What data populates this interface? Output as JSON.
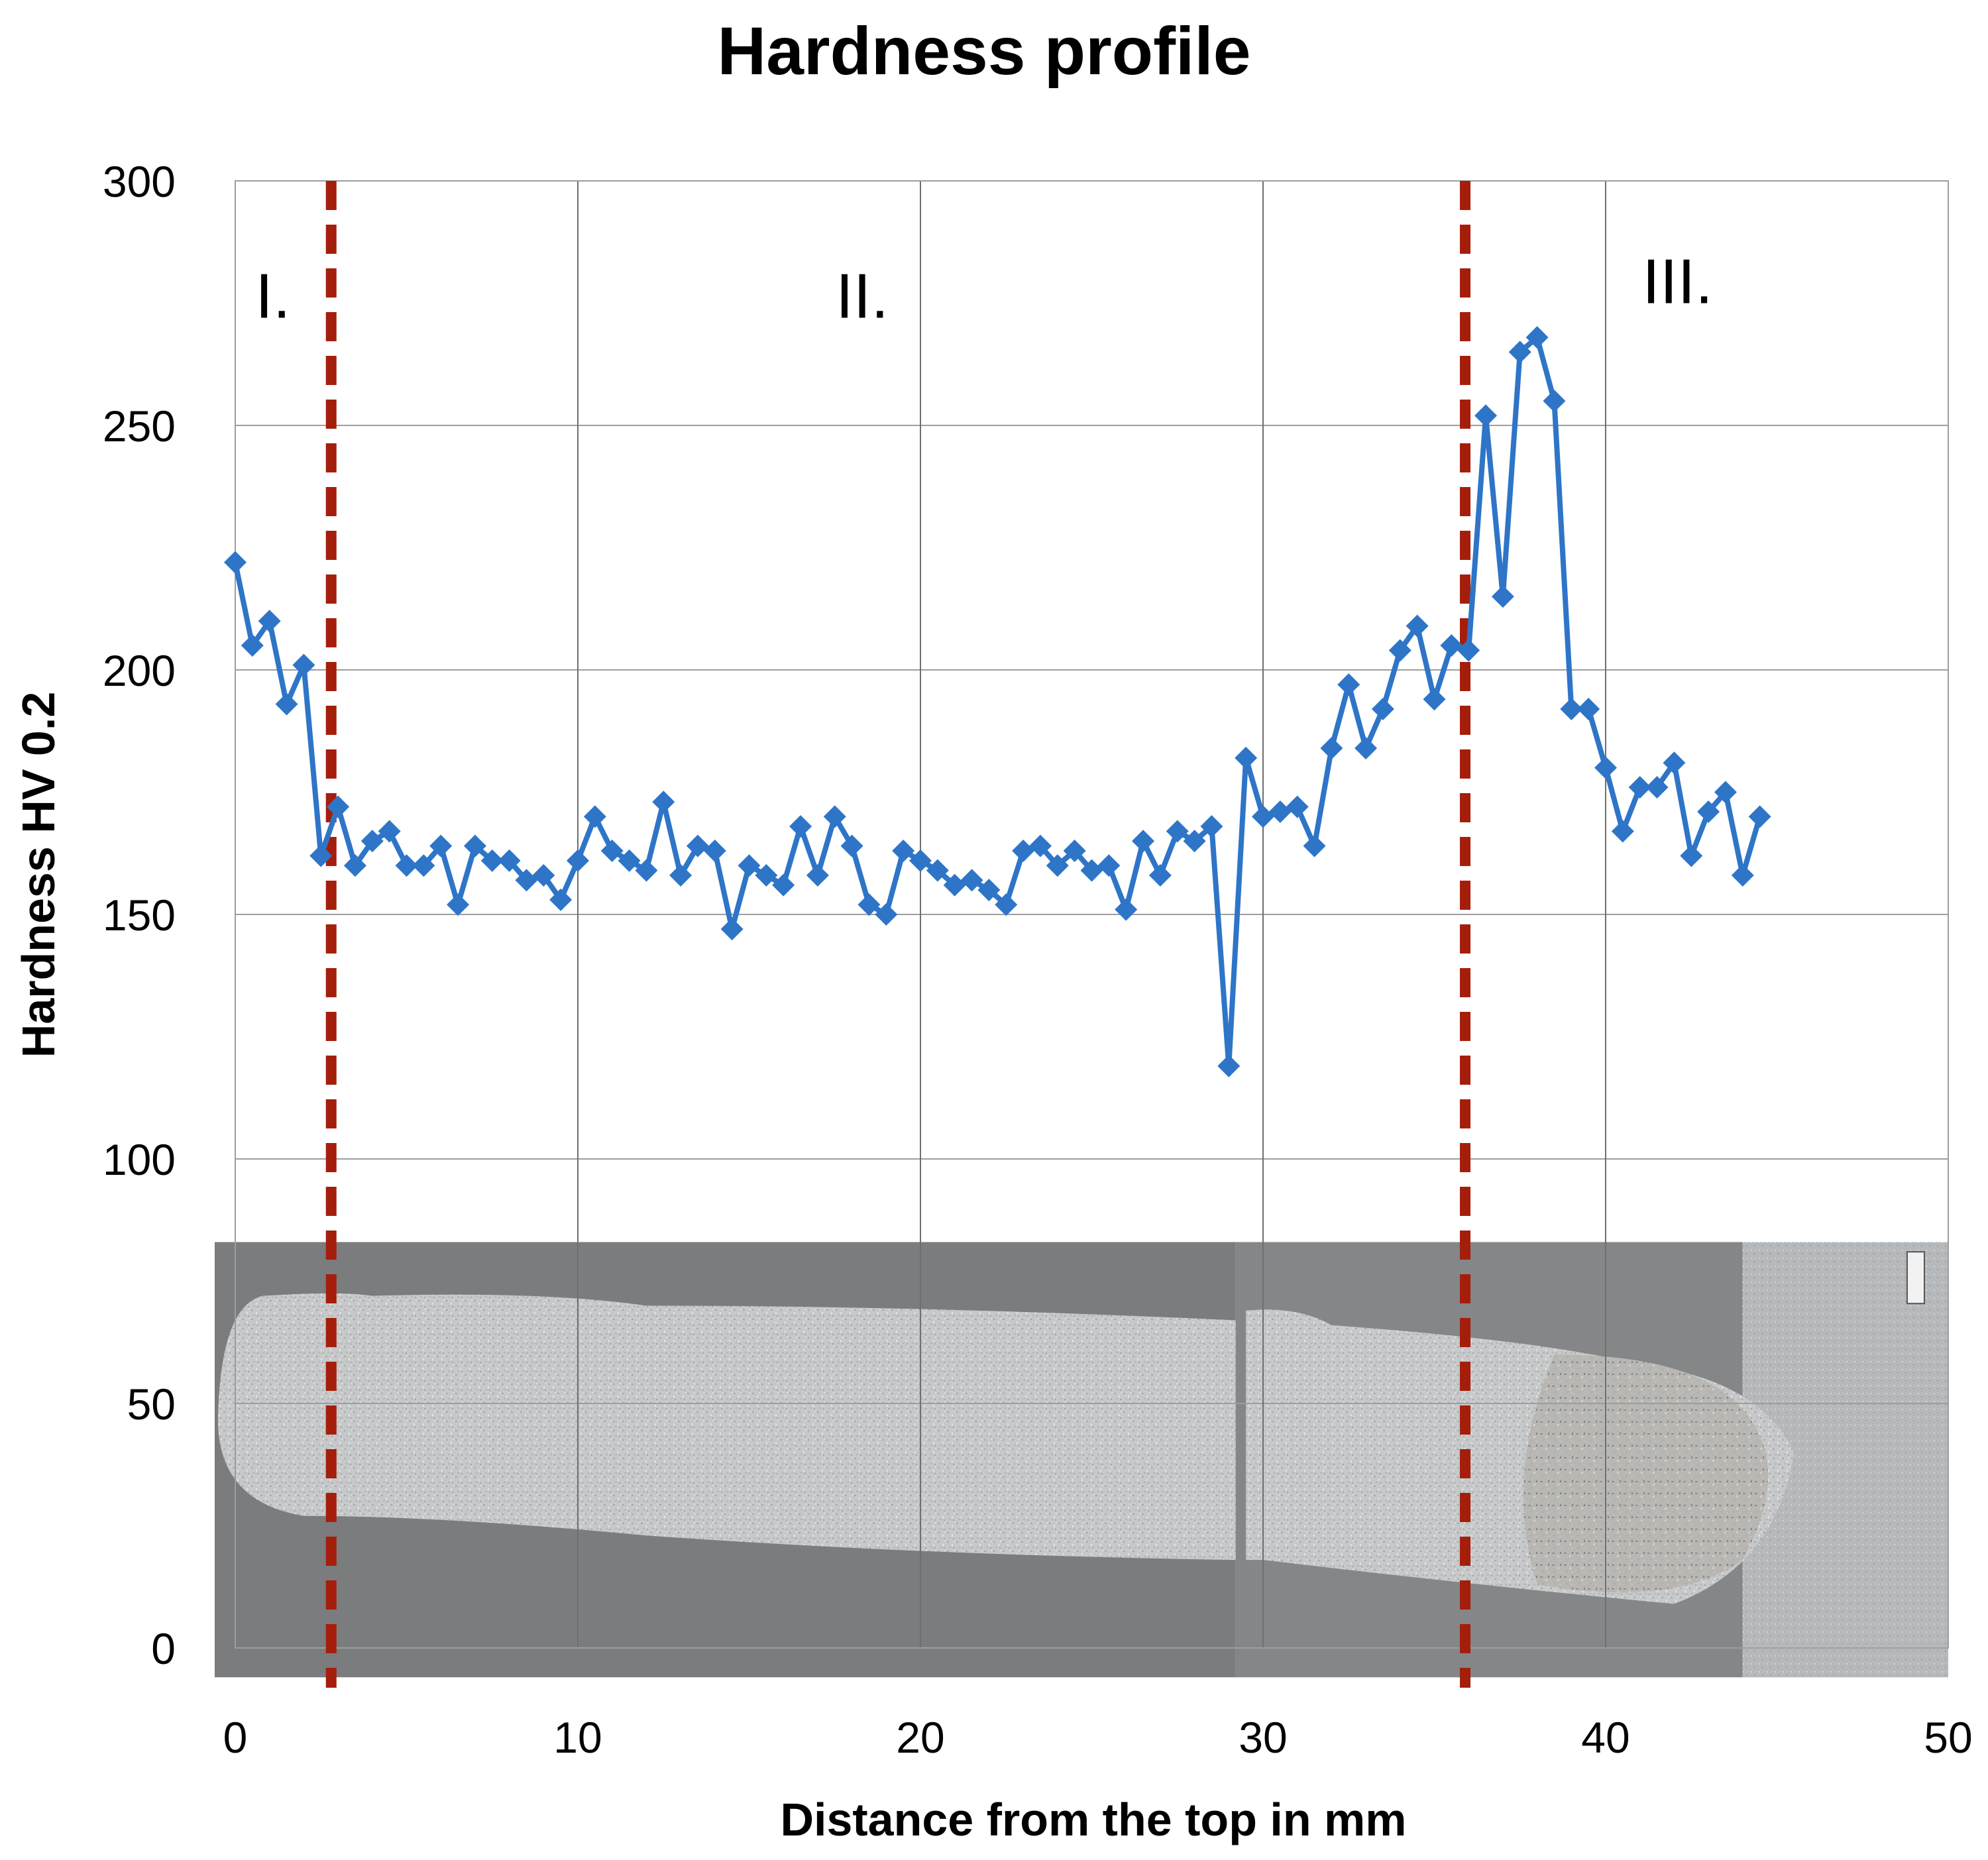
{
  "chart_data": {
    "type": "line",
    "title": "Hardness profile",
    "xlabel": "Distance from the top in mm",
    "ylabel": "Hardness HV 0.2",
    "xlim": [
      0,
      50
    ],
    "ylim": [
      0,
      300
    ],
    "xticks": [
      0,
      10,
      20,
      30,
      40,
      50
    ],
    "yticks": [
      0,
      50,
      100,
      150,
      200,
      250,
      300
    ],
    "grid": true,
    "series": [
      {
        "color": "#2e75c8",
        "marker": "diamond",
        "x": [
          0,
          0.5,
          1,
          1.5,
          2,
          2.5,
          3,
          3.5,
          4,
          4.5,
          5,
          5.5,
          6,
          6.5,
          7,
          7.5,
          8,
          8.5,
          9,
          9.5,
          10,
          10.5,
          11,
          11.5,
          12,
          12.5,
          13,
          13.5,
          14,
          14.5,
          15,
          15.5,
          16,
          16.5,
          17,
          17.5,
          18,
          18.5,
          19,
          19.5,
          20,
          20.5,
          21,
          21.5,
          22,
          22.5,
          23,
          23.5,
          24,
          24.5,
          25,
          25.5,
          26,
          26.5,
          27,
          27.5,
          28,
          28.5,
          29,
          29.5,
          30,
          30.5,
          31,
          31.5,
          32,
          32.5,
          33,
          33.5,
          34,
          34.5,
          35,
          35.5,
          36,
          36.5,
          37,
          37.5,
          38,
          38.5,
          39,
          39.5,
          40,
          40.5,
          41,
          41.5,
          42,
          42.5,
          43,
          43.5,
          44,
          44.5
        ],
        "y": [
          222,
          205,
          210,
          193,
          201,
          162,
          172,
          160,
          165,
          167,
          160,
          160,
          164,
          152,
          164,
          161,
          161,
          157,
          158,
          153,
          161,
          170,
          163,
          161,
          159,
          173,
          158,
          164,
          163,
          147,
          160,
          158,
          156,
          168,
          158,
          170,
          164,
          152,
          150,
          163,
          161,
          159,
          156,
          157,
          155,
          152,
          163,
          164,
          160,
          163,
          159,
          160,
          151,
          165,
          158,
          167,
          165,
          168,
          119,
          182,
          170,
          171,
          172,
          164,
          184,
          197,
          184,
          192,
          204,
          209,
          194,
          205,
          204,
          252,
          215,
          265,
          268,
          255,
          192,
          192,
          180,
          167,
          176,
          176,
          181,
          162,
          171,
          175,
          158,
          170
        ]
      }
    ],
    "boundaries": [
      {
        "x": 2.8,
        "color": "#a51e0c"
      },
      {
        "x": 35.9,
        "color": "#a51e0c"
      }
    ],
    "annotations": [
      {
        "text": "I.",
        "x": 1.1,
        "y": 272
      },
      {
        "text": "II.",
        "x": 18.3,
        "y": 272
      },
      {
        "text": "III.",
        "x": 42.1,
        "y": 275
      }
    ],
    "background_image": "weld-bead-micrograph",
    "background_extent": {
      "x": [
        -0.6,
        50
      ],
      "y": [
        -6,
        83
      ]
    }
  }
}
